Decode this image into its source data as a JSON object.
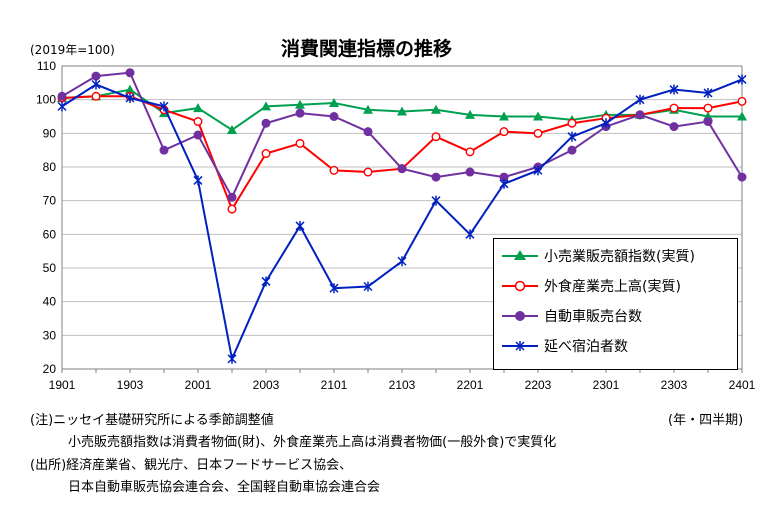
{
  "chart_data": {
    "type": "line",
    "title": "消費関連指標の推移",
    "ylabel": "(2019年=100)",
    "xlabel": "(年・四半期)",
    "ylim": [
      20,
      110
    ],
    "yticks": [
      20,
      30,
      40,
      50,
      60,
      70,
      80,
      90,
      100,
      110
    ],
    "categories": [
      "1901",
      "1902",
      "1903",
      "1904",
      "2001",
      "2002",
      "2003",
      "2004",
      "2101",
      "2102",
      "2103",
      "2104",
      "2201",
      "2202",
      "2203",
      "2204",
      "2301",
      "2302",
      "2303",
      "2304",
      "2401"
    ],
    "xtick_labels": [
      "1901",
      "1903",
      "2001",
      "2003",
      "2101",
      "2103",
      "2201",
      "2203",
      "2301",
      "2303",
      "2401"
    ],
    "grid": "horizontal",
    "legend_position": "bottom-right",
    "series": [
      {
        "name": "小売業販売額指数(実質)",
        "color": "#00a050",
        "marker": "triangle",
        "values": [
          100.5,
          101.0,
          103.0,
          96.0,
          97.5,
          91.0,
          98.0,
          98.5,
          99.0,
          97.0,
          96.5,
          97.0,
          95.5,
          95.0,
          95.0,
          94.0,
          95.5,
          95.5,
          97.0,
          95.0,
          95.0
        ]
      },
      {
        "name": "外食産業売上高(実質)",
        "color": "#ff0000",
        "marker": "open-circle",
        "values": [
          100.5,
          101.0,
          101.0,
          97.0,
          93.5,
          67.5,
          84.0,
          87.0,
          79.0,
          78.5,
          79.5,
          89.0,
          84.5,
          90.5,
          90.0,
          93.0,
          94.5,
          95.5,
          97.5,
          97.5,
          99.5
        ]
      },
      {
        "name": "自動車販売台数",
        "color": "#7030a0",
        "marker": "filled-circle",
        "values": [
          101.0,
          107.0,
          108.0,
          85.0,
          89.5,
          71.0,
          93.0,
          96.0,
          95.0,
          90.5,
          79.5,
          77.0,
          78.5,
          77.0,
          80.0,
          85.0,
          92.0,
          95.5,
          92.0,
          93.5,
          77.0
        ]
      },
      {
        "name": "延べ宿泊者数",
        "color": "#0020c0",
        "marker": "star",
        "values": [
          98.0,
          104.5,
          100.5,
          98.0,
          76.0,
          23.0,
          46.0,
          62.5,
          44.0,
          44.5,
          52.0,
          70.0,
          60.0,
          75.0,
          79.0,
          89.0,
          93.0,
          100.0,
          103.0,
          102.0,
          106.0
        ]
      }
    ]
  },
  "notes": {
    "line1": "(注)ニッセイ基礎研究所による季節調整値",
    "line2": "小売販売額指数は消費者物価(財)、外食産業売上高は消費者物価(一般外食)で実質化",
    "line3": "(出所)経済産業省、観光庁、日本フードサービス協会、",
    "line4": "日本自動車販売協会連合会、全国軽自動車協会連合会"
  }
}
